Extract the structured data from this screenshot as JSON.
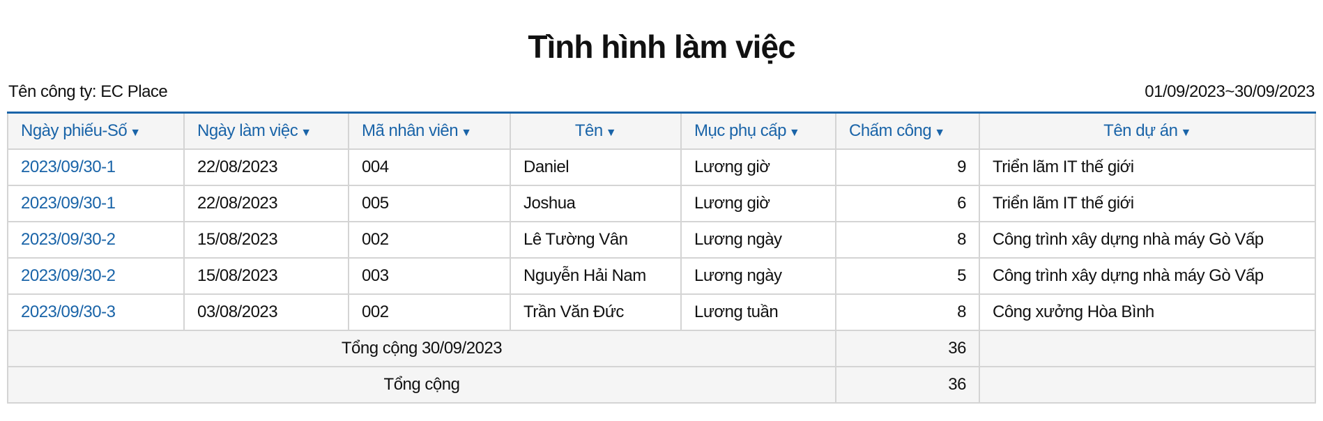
{
  "title": "Tình hình làm việc",
  "company_label": "Tên công ty: EC Place",
  "date_range": "01/09/2023~30/09/2023",
  "sort_icon": "caret-down-icon",
  "columns": [
    "Ngày phiếu-Số",
    "Ngày làm việc",
    "Mã nhân viên",
    "Tên",
    "Mục phụ cấp",
    "Chấm công",
    "Tên dự án"
  ],
  "rows": [
    [
      "2023/09/30-1",
      "22/08/2023",
      "004",
      "Daniel",
      "Lương giờ",
      "9",
      "Triển lãm IT thế giới"
    ],
    [
      "2023/09/30-1",
      "22/08/2023",
      "005",
      "Joshua",
      "Lương giờ",
      "6",
      "Triển lãm IT thế giới"
    ],
    [
      "2023/09/30-2",
      "15/08/2023",
      "002",
      "Lê Tường Vân",
      "Lương ngày",
      "8",
      "Công trình xây dựng nhà máy Gò Vấp"
    ],
    [
      "2023/09/30-2",
      "15/08/2023",
      "003",
      "Nguyễn Hải Nam",
      "Lương ngày",
      "5",
      "Công trình xây dựng nhà máy Gò Vấp"
    ],
    [
      "2023/09/30-3",
      "03/08/2023",
      "002",
      "Trần Văn Đức",
      "Lương tuần",
      "8",
      "Công xưởng Hòa Bình"
    ]
  ],
  "subtotal": {
    "label": "Tổng cộng 30/09/2023",
    "value": "36"
  },
  "total": {
    "label": "Tổng cộng",
    "value": "36"
  },
  "colors": {
    "accent": "#1a64a8",
    "header_bg": "#f5f5f5",
    "border": "#d4d4d4"
  }
}
